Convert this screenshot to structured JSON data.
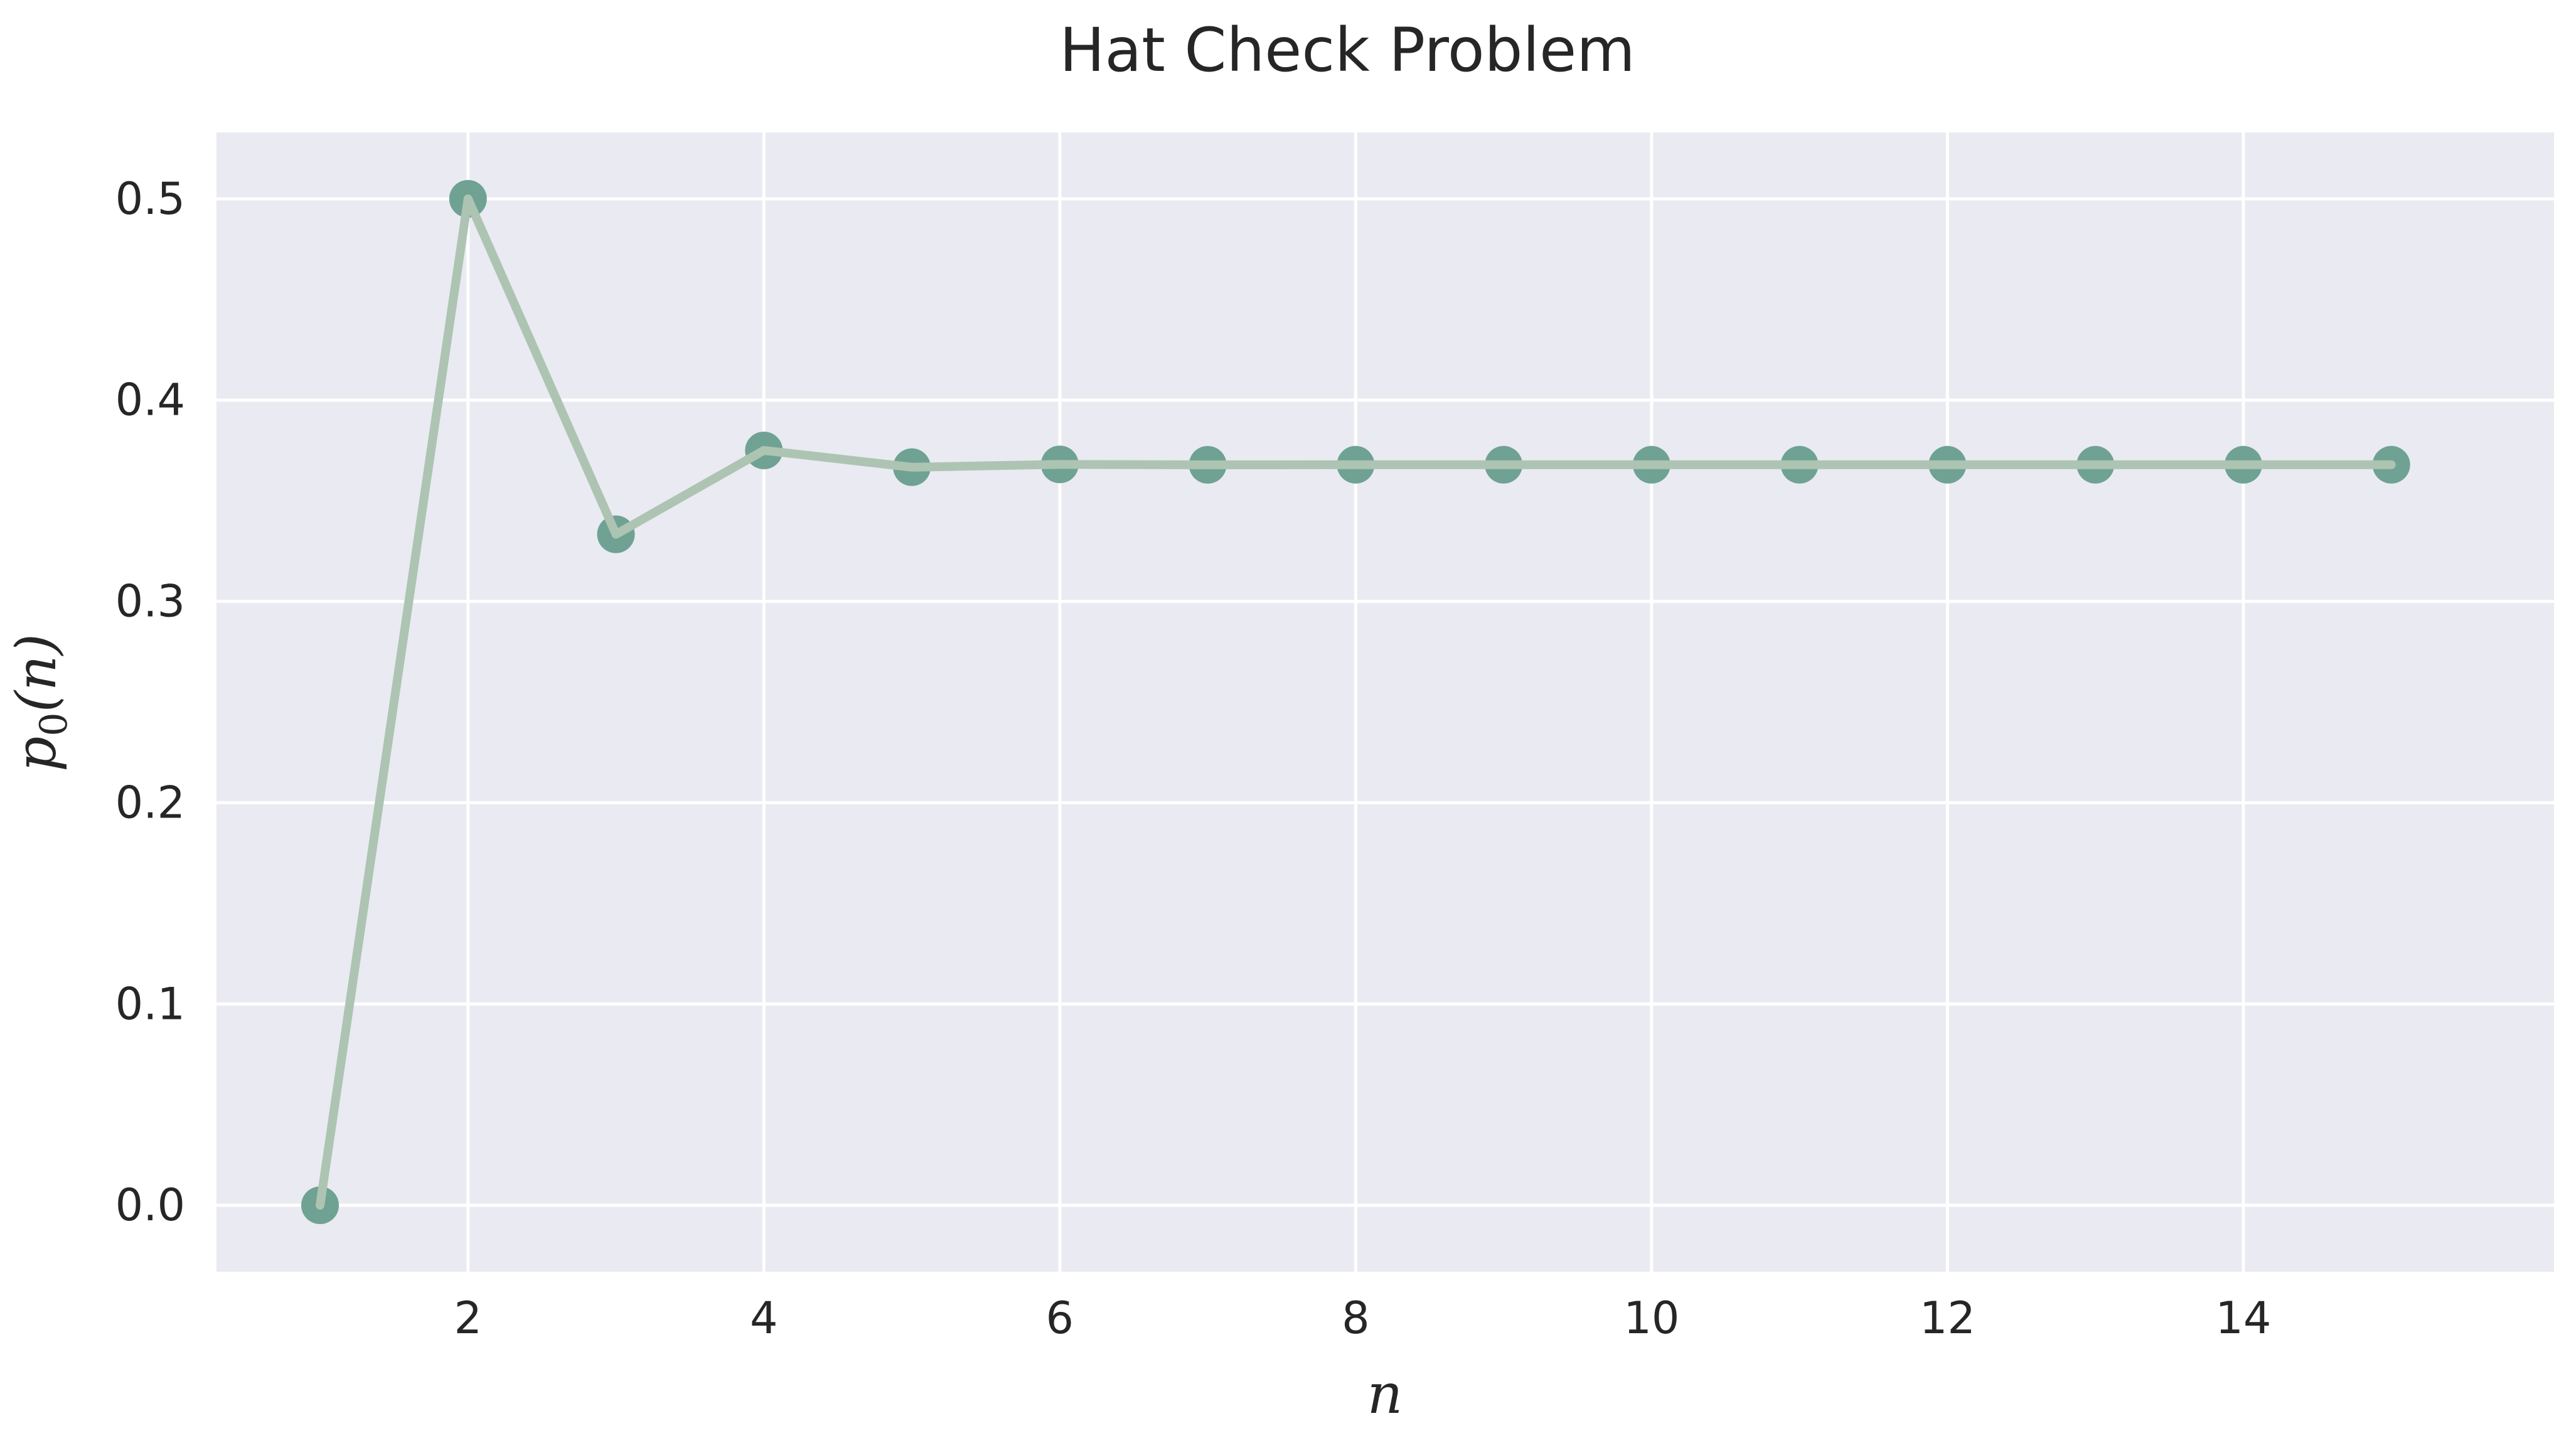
{
  "chart_data": {
    "type": "line",
    "title": "Hat Check Problem",
    "xlabel": "n",
    "ylabel_main": "p",
    "ylabel_sub": "0",
    "ylabel_tail": "(n)",
    "x": [
      1,
      2,
      3,
      4,
      5,
      6,
      7,
      8,
      9,
      10,
      11,
      12,
      13,
      14,
      15
    ],
    "y": [
      0.0,
      0.5,
      0.333333,
      0.375,
      0.366667,
      0.368056,
      0.367857,
      0.367882,
      0.367879,
      0.367879,
      0.367879,
      0.367879,
      0.367879,
      0.367879,
      0.367879
    ],
    "xlim": [
      0.3,
      16.1
    ],
    "ylim": [
      -0.033,
      0.533
    ],
    "xticks": [
      2,
      4,
      6,
      8,
      10,
      12,
      14
    ],
    "yticks": [
      0.0,
      0.1,
      0.2,
      0.3,
      0.4,
      0.5
    ],
    "ytick_labels": [
      "0.0",
      "0.1",
      "0.2",
      "0.3",
      "0.4",
      "0.5"
    ],
    "grid": true,
    "colors": {
      "background": "#eaeaf2",
      "line": "#adc4b2",
      "marker": "#6fa293",
      "grid": "#ffffff"
    }
  }
}
